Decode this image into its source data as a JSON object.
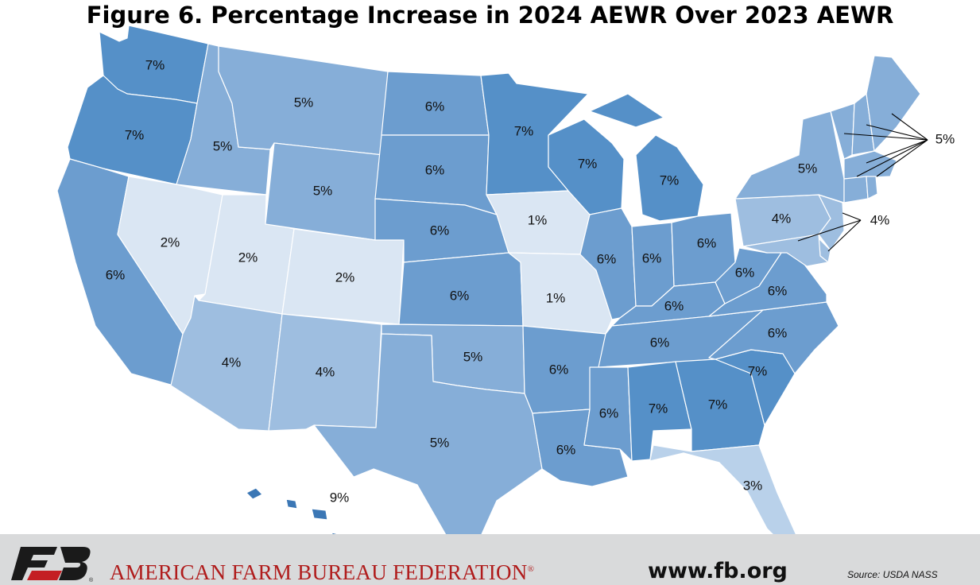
{
  "title": "Figure 6. Percentage Increase in 2024 AEWR Over 2023 AEWR",
  "colors": {
    "p1": "#dae6f3",
    "p2": "#dae6f3",
    "p3": "#b9d1ea",
    "p4": "#9ebee0",
    "p5": "#86aed8",
    "p6": "#6c9dcf",
    "p7": "#5590c8",
    "p9": "#3b77b5"
  },
  "states": [
    {
      "id": "WA",
      "pct": "7%"
    },
    {
      "id": "OR",
      "pct": "7%"
    },
    {
      "id": "CA",
      "pct": "6%"
    },
    {
      "id": "ID",
      "pct": "5%"
    },
    {
      "id": "NV",
      "pct": "2%"
    },
    {
      "id": "UT",
      "pct": "2%"
    },
    {
      "id": "AZ",
      "pct": "4%"
    },
    {
      "id": "MT",
      "pct": "5%"
    },
    {
      "id": "WY",
      "pct": "5%"
    },
    {
      "id": "CO",
      "pct": "2%"
    },
    {
      "id": "NM",
      "pct": "4%"
    },
    {
      "id": "ND",
      "pct": "6%"
    },
    {
      "id": "SD",
      "pct": "6%"
    },
    {
      "id": "NE",
      "pct": "6%"
    },
    {
      "id": "KS",
      "pct": "6%"
    },
    {
      "id": "OK",
      "pct": "5%"
    },
    {
      "id": "TX",
      "pct": "5%"
    },
    {
      "id": "MN",
      "pct": "7%"
    },
    {
      "id": "IA",
      "pct": "1%"
    },
    {
      "id": "MO",
      "pct": "1%"
    },
    {
      "id": "AR",
      "pct": "6%"
    },
    {
      "id": "LA",
      "pct": "6%"
    },
    {
      "id": "WI",
      "pct": "7%"
    },
    {
      "id": "IL",
      "pct": "6%"
    },
    {
      "id": "MI",
      "pct": "7%"
    },
    {
      "id": "IN",
      "pct": "6%"
    },
    {
      "id": "OH",
      "pct": "6%"
    },
    {
      "id": "KY",
      "pct": "6%"
    },
    {
      "id": "TN",
      "pct": "6%"
    },
    {
      "id": "MS",
      "pct": "6%"
    },
    {
      "id": "AL",
      "pct": "7%"
    },
    {
      "id": "GA",
      "pct": "7%"
    },
    {
      "id": "FL",
      "pct": "3%"
    },
    {
      "id": "SC",
      "pct": "7%"
    },
    {
      "id": "NC",
      "pct": "6%"
    },
    {
      "id": "VA",
      "pct": "6%"
    },
    {
      "id": "WV",
      "pct": "6%"
    },
    {
      "id": "PA",
      "pct": "4%"
    },
    {
      "id": "NY",
      "pct": "5%"
    },
    {
      "id": "NJ",
      "pct": "4%"
    },
    {
      "id": "DE",
      "pct": "4%"
    },
    {
      "id": "MD",
      "pct": "4%"
    },
    {
      "id": "VT",
      "pct": "5%"
    },
    {
      "id": "NH",
      "pct": "5%"
    },
    {
      "id": "MA",
      "pct": "5%"
    },
    {
      "id": "CT",
      "pct": "5%"
    },
    {
      "id": "RI",
      "pct": "5%"
    },
    {
      "id": "ME",
      "pct": "5%"
    },
    {
      "id": "HI",
      "pct": "9%"
    }
  ],
  "callouts": {
    "new_england": "5%",
    "mid_atlantic": "4%"
  },
  "footer": {
    "organization": "AMERICAN FARM BUREAU FEDERATION",
    "registered_mark": "®",
    "website": "www.fb.org",
    "source": "Source: USDA NASS",
    "logo_text": "FB"
  }
}
